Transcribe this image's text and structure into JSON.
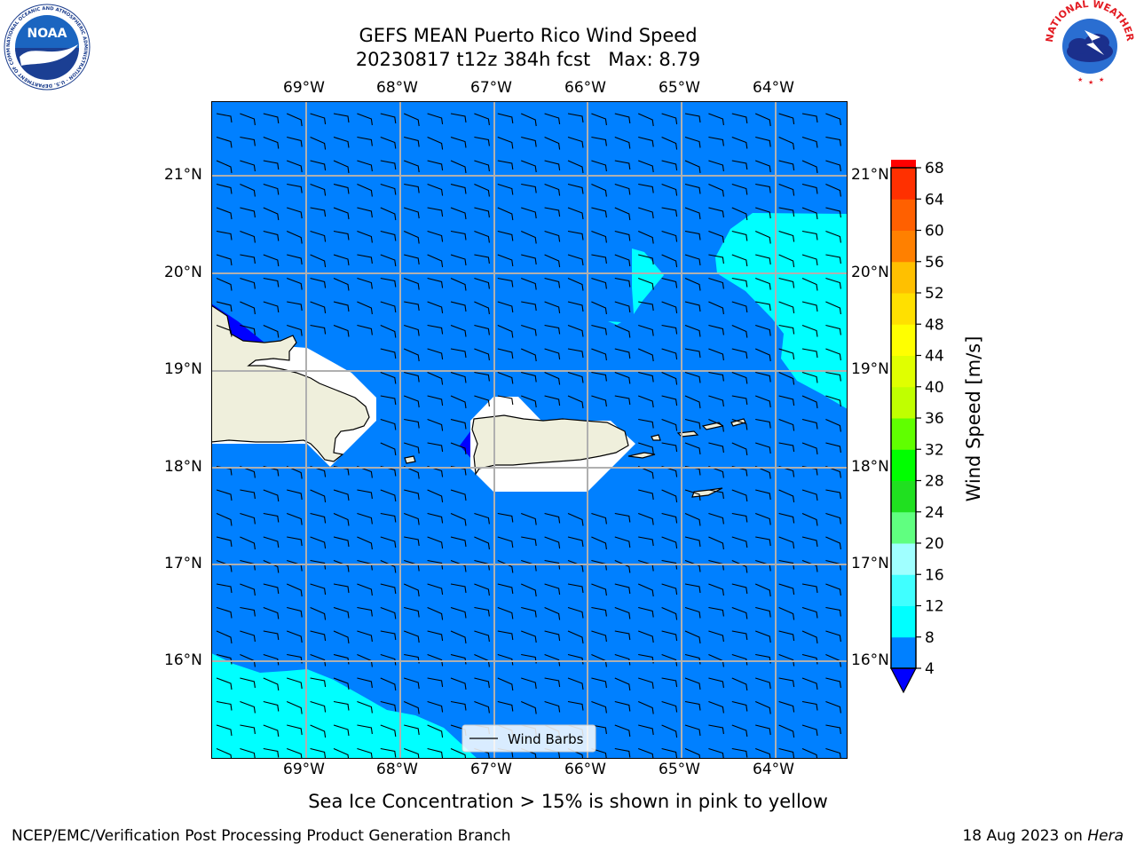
{
  "title": {
    "line1": "GEFS MEAN Puerto Rico Wind Speed",
    "line2": "20230817 t12z 384h fcst   Max: 8.79"
  },
  "logos": {
    "noaa": "NOAA",
    "noaa_ring_text": "NATIONAL OCEANIC AND ATMOSPHERIC ADMINISTRATION · U.S. DEPARTMENT OF COMMERCE",
    "nws_ring_text": "NATIONAL WEATHER SERVICE"
  },
  "map": {
    "lon_labels": [
      "69°W",
      "68°W",
      "67°W",
      "66°W",
      "65°W",
      "64°W"
    ],
    "lat_labels": [
      "21°N",
      "20°N",
      "19°N",
      "18°N",
      "17°N",
      "16°N"
    ],
    "legend_label": "Wind Barbs",
    "ocean_color": "#0080ff",
    "light_wind_color": "#00ffff",
    "low_wind_color": "#0000ff",
    "land_color": "#efefdc",
    "masked_color": "#ffffff"
  },
  "colorbar": {
    "label": "Wind Speed [m/s]",
    "ticks": [
      "4",
      "8",
      "12",
      "16",
      "20",
      "24",
      "28",
      "32",
      "36",
      "40",
      "44",
      "48",
      "52",
      "56",
      "60",
      "64",
      "68"
    ],
    "colors": [
      "#0080ff",
      "#00ffff",
      "#40ffff",
      "#a0ffff",
      "#60ff80",
      "#20e020",
      "#00ff00",
      "#60ff00",
      "#c0ff00",
      "#e0ff00",
      "#ffff00",
      "#ffe000",
      "#ffc000",
      "#ff8000",
      "#ff6000",
      "#ff3000",
      "#ff0000"
    ],
    "under_color": "#0000ff"
  },
  "note": "Sea Ice Concentration > 15% is shown in pink to yellow",
  "footer": {
    "left": "NCEP/EMC/Verification Post Processing Product Generation Branch",
    "date": "18 Aug 2023 on ",
    "machine": "Hera"
  }
}
